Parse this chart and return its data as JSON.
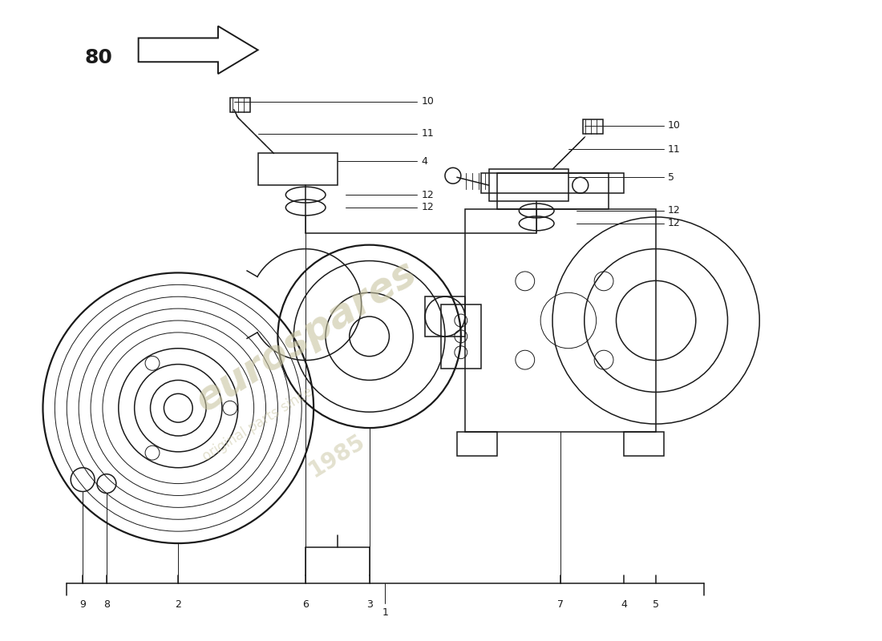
{
  "bg_color": "#ffffff",
  "line_color": "#1a1a1a",
  "watermark_text1": "eurospares",
  "watermark_text2": "original parts since",
  "watermark_text3": "1985",
  "watermark_color": "#c8c4a0",
  "arrow_number": "80",
  "figsize": [
    11.0,
    8.0
  ],
  "dpi": 100
}
